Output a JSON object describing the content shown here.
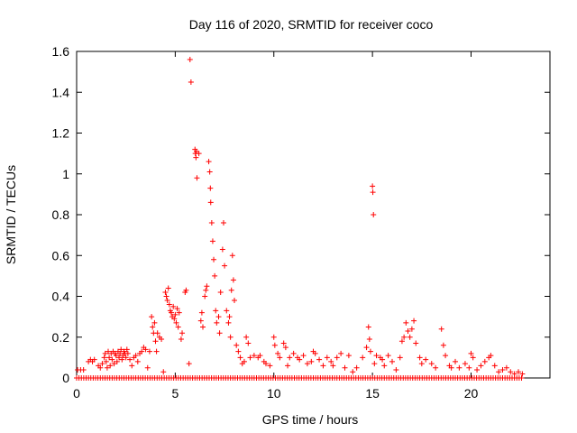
{
  "chart_data": {
    "type": "scatter",
    "title": "Day 116 of 2020, SRMTID for receiver coco",
    "xlabel": "GPS time / hours",
    "ylabel": "SRMTID / TECUs",
    "xlim": [
      0,
      24
    ],
    "ylim": [
      0,
      1.6
    ],
    "xticks": [
      0,
      5,
      10,
      15,
      20
    ],
    "yticks": [
      0,
      0.2,
      0.4,
      0.6,
      0.8,
      1,
      1.2,
      1.4,
      1.6
    ],
    "xtick_labels": [
      "0",
      "5",
      "10",
      "15",
      "20"
    ],
    "ytick_labels": [
      "0",
      "0.2",
      "0.4",
      "0.6",
      "0.8",
      "1",
      "1.2",
      "1.4",
      "1.6"
    ],
    "marker": "+",
    "color": "#ff0000",
    "grid": false,
    "series": [
      {
        "name": "SRMTID",
        "points": [
          [
            0.05,
            0.04
          ],
          [
            0.2,
            0.04
          ],
          [
            0.35,
            0.04
          ],
          [
            0.6,
            0.08
          ],
          [
            0.7,
            0.09
          ],
          [
            0.8,
            0.08
          ],
          [
            0.9,
            0.09
          ],
          [
            1.1,
            0.06
          ],
          [
            1.2,
            0.05
          ],
          [
            1.3,
            0.07
          ],
          [
            1.4,
            0.1
          ],
          [
            1.45,
            0.12
          ],
          [
            1.5,
            0.08
          ],
          [
            1.55,
            0.05
          ],
          [
            1.6,
            0.13
          ],
          [
            1.65,
            0.1
          ],
          [
            1.7,
            0.06
          ],
          [
            1.75,
            0.12
          ],
          [
            1.8,
            0.09
          ],
          [
            1.85,
            0.13
          ],
          [
            1.9,
            0.07
          ],
          [
            1.95,
            0.12
          ],
          [
            2.0,
            0.11
          ],
          [
            2.05,
            0.08
          ],
          [
            2.1,
            0.13
          ],
          [
            2.15,
            0.1
          ],
          [
            2.2,
            0.12
          ],
          [
            2.25,
            0.14
          ],
          [
            2.3,
            0.09
          ],
          [
            2.35,
            0.11
          ],
          [
            2.4,
            0.13
          ],
          [
            2.45,
            0.12
          ],
          [
            2.5,
            0.1
          ],
          [
            2.55,
            0.14
          ],
          [
            2.6,
            0.12
          ],
          [
            2.7,
            0.09
          ],
          [
            2.8,
            0.06
          ],
          [
            2.9,
            0.1
          ],
          [
            3.0,
            0.11
          ],
          [
            3.1,
            0.08
          ],
          [
            3.2,
            0.12
          ],
          [
            3.3,
            0.13
          ],
          [
            3.4,
            0.15
          ],
          [
            3.5,
            0.14
          ],
          [
            3.6,
            0.05
          ],
          [
            3.7,
            0.13
          ],
          [
            3.8,
            0.3
          ],
          [
            3.85,
            0.25
          ],
          [
            3.9,
            0.22
          ],
          [
            3.95,
            0.27
          ],
          [
            4.0,
            0.18
          ],
          [
            4.05,
            0.13
          ],
          [
            4.1,
            0.22
          ],
          [
            4.2,
            0.2
          ],
          [
            4.3,
            0.19
          ],
          [
            4.4,
            0.03
          ],
          [
            4.5,
            0.42
          ],
          [
            4.55,
            0.4
          ],
          [
            4.6,
            0.38
          ],
          [
            4.65,
            0.44
          ],
          [
            4.7,
            0.36
          ],
          [
            4.75,
            0.33
          ],
          [
            4.8,
            0.32
          ],
          [
            4.85,
            0.3
          ],
          [
            4.9,
            0.35
          ],
          [
            4.95,
            0.29
          ],
          [
            5.0,
            0.31
          ],
          [
            5.05,
            0.27
          ],
          [
            5.1,
            0.34
          ],
          [
            5.15,
            0.25
          ],
          [
            5.2,
            0.32
          ],
          [
            5.3,
            0.19
          ],
          [
            5.35,
            0.22
          ],
          [
            5.5,
            0.42
          ],
          [
            5.55,
            0.43
          ],
          [
            5.7,
            0.07
          ],
          [
            5.75,
            1.56
          ],
          [
            5.8,
            1.45
          ],
          [
            6.0,
            1.12
          ],
          [
            6.02,
            1.1
          ],
          [
            6.05,
            1.08
          ],
          [
            6.08,
            1.11
          ],
          [
            6.1,
            0.98
          ],
          [
            6.2,
            1.1
          ],
          [
            6.3,
            0.28
          ],
          [
            6.35,
            0.32
          ],
          [
            6.4,
            0.25
          ],
          [
            6.5,
            0.4
          ],
          [
            6.55,
            0.43
          ],
          [
            6.6,
            0.45
          ],
          [
            6.7,
            1.06
          ],
          [
            6.75,
            1.01
          ],
          [
            6.78,
            0.93
          ],
          [
            6.8,
            0.86
          ],
          [
            6.85,
            0.76
          ],
          [
            6.9,
            0.67
          ],
          [
            6.95,
            0.58
          ],
          [
            7.0,
            0.5
          ],
          [
            7.05,
            0.33
          ],
          [
            7.1,
            0.27
          ],
          [
            7.2,
            0.3
          ],
          [
            7.25,
            0.22
          ],
          [
            7.3,
            0.42
          ],
          [
            7.4,
            0.63
          ],
          [
            7.45,
            0.76
          ],
          [
            7.5,
            0.55
          ],
          [
            7.6,
            0.33
          ],
          [
            7.7,
            0.27
          ],
          [
            7.75,
            0.3
          ],
          [
            7.8,
            0.2
          ],
          [
            7.85,
            0.43
          ],
          [
            7.9,
            0.6
          ],
          [
            7.95,
            0.48
          ],
          [
            8.0,
            0.38
          ],
          [
            8.1,
            0.16
          ],
          [
            8.2,
            0.13
          ],
          [
            8.3,
            0.1
          ],
          [
            8.4,
            0.07
          ],
          [
            8.5,
            0.08
          ],
          [
            8.6,
            0.2
          ],
          [
            8.7,
            0.17
          ],
          [
            8.8,
            0.1
          ],
          [
            9.0,
            0.11
          ],
          [
            9.2,
            0.1
          ],
          [
            9.3,
            0.11
          ],
          [
            9.5,
            0.08
          ],
          [
            9.6,
            0.07
          ],
          [
            9.8,
            0.06
          ],
          [
            10.0,
            0.2
          ],
          [
            10.05,
            0.16
          ],
          [
            10.2,
            0.12
          ],
          [
            10.3,
            0.1
          ],
          [
            10.5,
            0.17
          ],
          [
            10.6,
            0.15
          ],
          [
            10.7,
            0.06
          ],
          [
            10.8,
            0.1
          ],
          [
            11.0,
            0.12
          ],
          [
            11.2,
            0.1
          ],
          [
            11.3,
            0.09
          ],
          [
            11.5,
            0.11
          ],
          [
            11.7,
            0.07
          ],
          [
            11.9,
            0.08
          ],
          [
            12.0,
            0.13
          ],
          [
            12.1,
            0.12
          ],
          [
            12.3,
            0.09
          ],
          [
            12.5,
            0.06
          ],
          [
            12.7,
            0.1
          ],
          [
            12.9,
            0.08
          ],
          [
            13.0,
            0.06
          ],
          [
            13.2,
            0.1
          ],
          [
            13.4,
            0.12
          ],
          [
            13.6,
            0.05
          ],
          [
            13.8,
            0.11
          ],
          [
            14.0,
            0.03
          ],
          [
            14.2,
            0.05
          ],
          [
            14.5,
            0.1
          ],
          [
            14.7,
            0.15
          ],
          [
            14.8,
            0.25
          ],
          [
            14.85,
            0.19
          ],
          [
            14.9,
            0.13
          ],
          [
            15.0,
            0.94
          ],
          [
            15.02,
            0.91
          ],
          [
            15.05,
            0.8
          ],
          [
            15.1,
            0.07
          ],
          [
            15.2,
            0.11
          ],
          [
            15.4,
            0.1
          ],
          [
            15.5,
            0.09
          ],
          [
            15.6,
            0.06
          ],
          [
            15.8,
            0.11
          ],
          [
            16.0,
            0.08
          ],
          [
            16.2,
            0.04
          ],
          [
            16.4,
            0.1
          ],
          [
            16.5,
            0.18
          ],
          [
            16.6,
            0.2
          ],
          [
            16.7,
            0.27
          ],
          [
            16.8,
            0.23
          ],
          [
            16.9,
            0.2
          ],
          [
            17.0,
            0.24
          ],
          [
            17.1,
            0.28
          ],
          [
            17.2,
            0.17
          ],
          [
            17.4,
            0.1
          ],
          [
            17.5,
            0.07
          ],
          [
            17.7,
            0.09
          ],
          [
            18.0,
            0.07
          ],
          [
            18.2,
            0.05
          ],
          [
            18.5,
            0.24
          ],
          [
            18.6,
            0.16
          ],
          [
            18.7,
            0.11
          ],
          [
            18.9,
            0.06
          ],
          [
            19.0,
            0.05
          ],
          [
            19.2,
            0.08
          ],
          [
            19.4,
            0.05
          ],
          [
            19.7,
            0.07
          ],
          [
            19.9,
            0.05
          ],
          [
            20.0,
            0.12
          ],
          [
            20.1,
            0.1
          ],
          [
            20.3,
            0.04
          ],
          [
            20.5,
            0.06
          ],
          [
            20.7,
            0.08
          ],
          [
            20.9,
            0.1
          ],
          [
            21.0,
            0.11
          ],
          [
            21.2,
            0.06
          ],
          [
            21.4,
            0.03
          ],
          [
            21.6,
            0.04
          ],
          [
            21.8,
            0.05
          ],
          [
            22.0,
            0.03
          ],
          [
            22.2,
            0.02
          ],
          [
            22.4,
            0.03
          ],
          [
            22.6,
            0.02
          ]
        ]
      }
    ]
  }
}
